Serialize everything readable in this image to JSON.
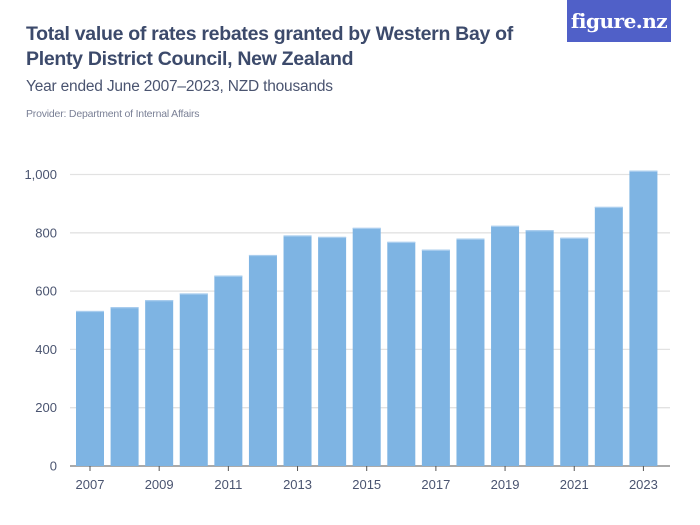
{
  "title": "Total value of rates rebates granted by Western Bay of Plenty District Council, New Zealand",
  "subtitle": "Year ended June 2007–2023, NZD thousands",
  "provider": "Provider: Department of Internal Affairs",
  "logo": "figure.nz",
  "colors": {
    "bar": "#7eb4e3",
    "bar_top": "#a9cdee",
    "grid": "#e2e2e2",
    "logo_bg": "#5060c8"
  },
  "chart_data": {
    "type": "bar",
    "title": "Total value of rates rebates granted by Western Bay of Plenty District Council, New Zealand",
    "subtitle": "Year ended June 2007–2023, NZD thousands",
    "categories": [
      "2007",
      "2008",
      "2009",
      "2010",
      "2011",
      "2012",
      "2013",
      "2014",
      "2015",
      "2016",
      "2017",
      "2018",
      "2019",
      "2020",
      "2021",
      "2022",
      "2023"
    ],
    "values": [
      532,
      545,
      569,
      592,
      653,
      724,
      791,
      786,
      817,
      769,
      742,
      780,
      824,
      809,
      783,
      889,
      1013
    ],
    "xtick_labels": [
      "2007",
      "2009",
      "2011",
      "2013",
      "2015",
      "2017",
      "2019",
      "2021",
      "2023"
    ],
    "ytick_labels": [
      "0",
      "200",
      "400",
      "600",
      "800",
      "1,000"
    ],
    "yticks": [
      0,
      200,
      400,
      600,
      800,
      1000
    ],
    "ylim": [
      0,
      1000
    ],
    "grid": true,
    "xlabel": "",
    "ylabel": ""
  }
}
